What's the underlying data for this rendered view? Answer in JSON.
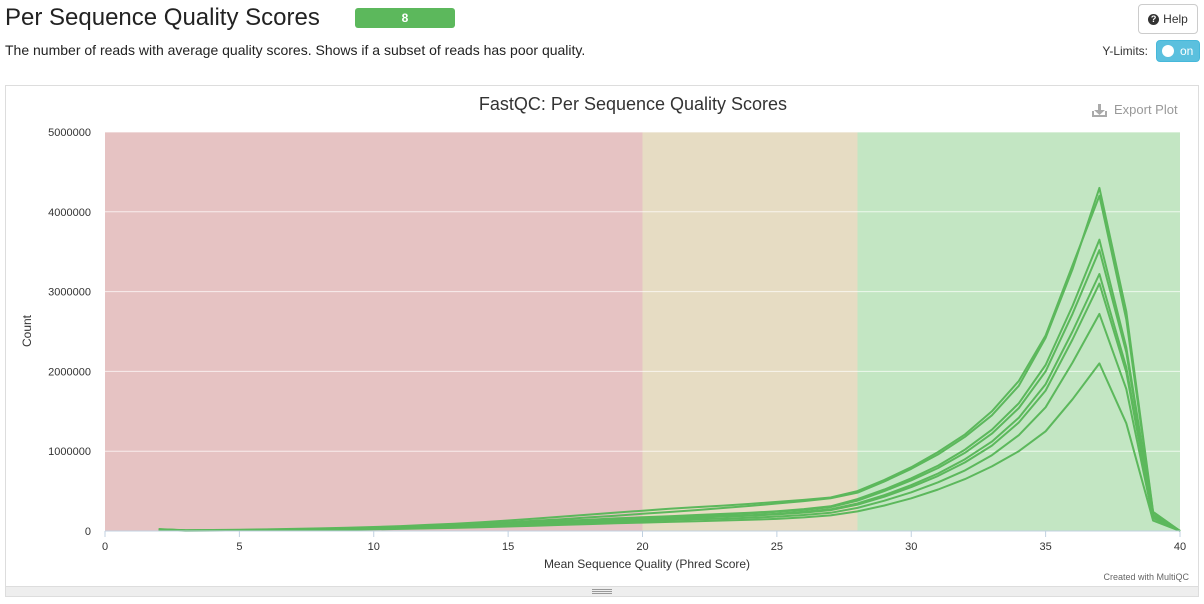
{
  "header": {
    "title": "Per Sequence Quality Scores",
    "badge": "8",
    "description": "The number of reads with average quality scores. Shows if a subset of reads has poor quality.",
    "help_label": "Help",
    "ylimits_label": "Y-Limits:",
    "toggle_label": "on"
  },
  "export_label": "Export Plot",
  "credit": "Created with MultiQC",
  "colors": {
    "series": "#5cb85c",
    "band_fail": "#e6c3c3",
    "band_warn": "#e6dcc3",
    "band_pass": "#c3e6c3",
    "badge": "#5cb85c",
    "toggle": "#5bc0de"
  },
  "chart_data": {
    "type": "line",
    "title": "FastQC: Per Sequence Quality Scores",
    "xlabel": "Mean Sequence Quality (Phred Score)",
    "ylabel": "Count",
    "xlim": [
      0,
      40
    ],
    "ylim": [
      0,
      5000000
    ],
    "xticks": [
      0,
      5,
      10,
      15,
      20,
      25,
      30,
      35,
      40
    ],
    "yticks": [
      0,
      1000000,
      2000000,
      3000000,
      4000000,
      5000000
    ],
    "grid": true,
    "legend": "none",
    "bands": [
      {
        "from": 0,
        "to": 20,
        "color": "#e6c3c3"
      },
      {
        "from": 20,
        "to": 28,
        "color": "#e6dcc3"
      },
      {
        "from": 28,
        "to": 40,
        "color": "#c3e6c3"
      }
    ],
    "x": [
      2,
      3,
      4,
      5,
      6,
      7,
      8,
      9,
      10,
      11,
      12,
      13,
      14,
      15,
      16,
      17,
      18,
      19,
      20,
      21,
      22,
      23,
      24,
      25,
      26,
      27,
      28,
      29,
      30,
      31,
      32,
      33,
      34,
      35,
      36,
      37,
      38,
      39,
      40
    ],
    "series": [
      {
        "values": [
          22000,
          8000,
          9000,
          12000,
          16000,
          20000,
          25000,
          32000,
          40000,
          50000,
          62000,
          76000,
          92000,
          110000,
          128000,
          148000,
          170000,
          192000,
          215000,
          238000,
          262000,
          288000,
          315000,
          345000,
          375000,
          410000,
          480000,
          620000,
          780000,
          960000,
          1180000,
          1450000,
          1820000,
          2420000,
          3280000,
          4300000,
          2750000,
          240000,
          0
        ]
      },
      {
        "values": [
          24000,
          10000,
          12000,
          16000,
          20000,
          26000,
          32000,
          40000,
          50000,
          62000,
          76000,
          92000,
          110000,
          132000,
          155000,
          180000,
          205000,
          230000,
          255000,
          280000,
          300000,
          318000,
          340000,
          365000,
          390000,
          420000,
          500000,
          640000,
          800000,
          990000,
          1210000,
          1500000,
          1880000,
          2450000,
          3330000,
          4200000,
          2650000,
          230000,
          0
        ]
      },
      {
        "values": [
          20000,
          7000,
          8000,
          10000,
          13000,
          17000,
          21000,
          27000,
          34000,
          42000,
          52000,
          64000,
          78000,
          94000,
          110000,
          126000,
          142000,
          158000,
          172000,
          186000,
          200000,
          214000,
          228000,
          248000,
          275000,
          310000,
          400000,
          520000,
          660000,
          820000,
          1020000,
          1270000,
          1600000,
          2080000,
          2820000,
          3650000,
          2300000,
          200000,
          0
        ]
      },
      {
        "values": [
          20000,
          7000,
          8000,
          10000,
          13000,
          16000,
          20000,
          26000,
          32000,
          40000,
          50000,
          61000,
          74000,
          89000,
          104000,
          120000,
          136000,
          150000,
          164000,
          178000,
          192000,
          206000,
          220000,
          240000,
          265000,
          300000,
          380000,
          500000,
          635000,
          790000,
          980000,
          1220000,
          1540000,
          2000000,
          2720000,
          3520000,
          2240000,
          195000,
          0
        ]
      },
      {
        "values": [
          18000,
          6000,
          7000,
          9000,
          12000,
          15000,
          19000,
          24000,
          30000,
          37000,
          46000,
          56000,
          68000,
          82000,
          96000,
          110000,
          124000,
          138000,
          150000,
          162000,
          174000,
          186000,
          198000,
          216000,
          240000,
          272000,
          345000,
          450000,
          575000,
          720000,
          900000,
          1120000,
          1420000,
          1840000,
          2500000,
          3220000,
          2050000,
          180000,
          0
        ]
      },
      {
        "values": [
          18000,
          6000,
          7000,
          9000,
          11000,
          14000,
          18000,
          23000,
          29000,
          36000,
          44000,
          54000,
          65000,
          78000,
          92000,
          106000,
          119000,
          132000,
          144000,
          156000,
          168000,
          180000,
          192000,
          208000,
          230000,
          262000,
          330000,
          430000,
          550000,
          690000,
          860000,
          1070000,
          1360000,
          1760000,
          2400000,
          3100000,
          1990000,
          175000,
          0
        ]
      },
      {
        "values": [
          16000,
          5000,
          6000,
          8000,
          10000,
          13000,
          16000,
          20000,
          25000,
          31000,
          38000,
          46000,
          56000,
          67000,
          79000,
          91000,
          103000,
          114000,
          125000,
          136000,
          146000,
          156000,
          166000,
          180000,
          200000,
          228000,
          290000,
          380000,
          485000,
          610000,
          760000,
          950000,
          1200000,
          1550000,
          2110000,
          2720000,
          1780000,
          160000,
          0
        ]
      },
      {
        "values": [
          14000,
          4000,
          5000,
          7000,
          9000,
          11000,
          14000,
          17000,
          21000,
          26000,
          32000,
          39000,
          47000,
          56000,
          66000,
          76000,
          86000,
          96000,
          105000,
          114000,
          123000,
          132000,
          141000,
          152000,
          170000,
          195000,
          245000,
          320000,
          410000,
          520000,
          650000,
          810000,
          1000000,
          1250000,
          1650000,
          2100000,
          1350000,
          130000,
          0
        ]
      }
    ]
  }
}
